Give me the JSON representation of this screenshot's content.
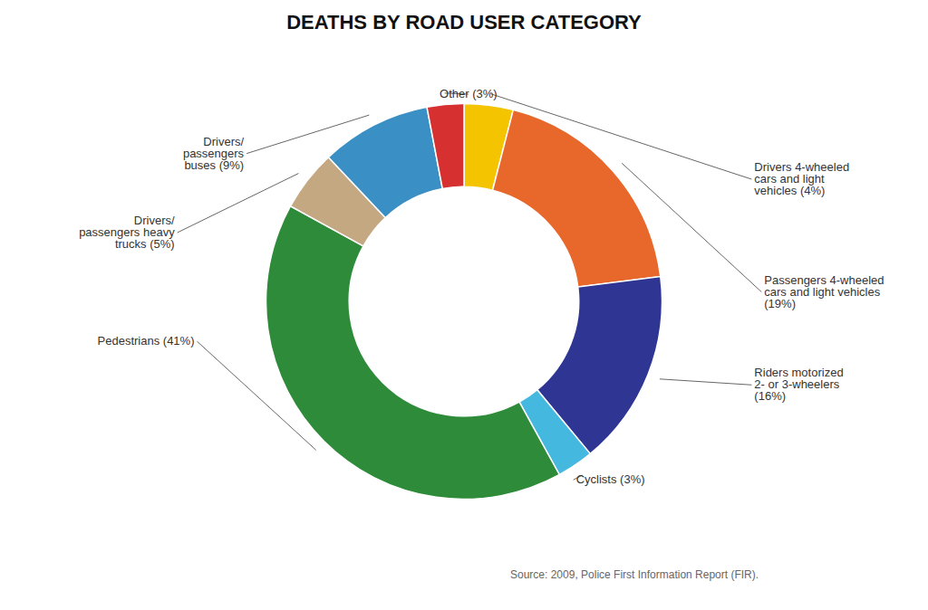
{
  "chart_data": {
    "type": "pie",
    "title": "DEATHS BY ROAD USER CATEGORY",
    "categories": [
      "Drivers 4-wheeled\ncars and light\nvehicles (4%)",
      "Passengers 4-wheeled\ncars and light vehicles\n(19%)",
      "Riders motorized\n2- or 3-wheelers\n(16%)",
      "Cyclists (3%)",
      "Pedestrians (41%)",
      "Drivers/\npassengers heavy\ntrucks (5%)",
      "Drivers/\npassengers\nbuses (9%)",
      "Other (3%)"
    ],
    "values": [
      4,
      19,
      16,
      3,
      41,
      5,
      9,
      3
    ],
    "colors": [
      "#F5C400",
      "#E8672A",
      "#2E3592",
      "#45B8E0",
      "#2E8B3A",
      "#C4A882",
      "#3A8FC4",
      "#D63030"
    ],
    "annotations": [
      "Source: 2009, Police First Information Report (FIR)."
    ]
  }
}
